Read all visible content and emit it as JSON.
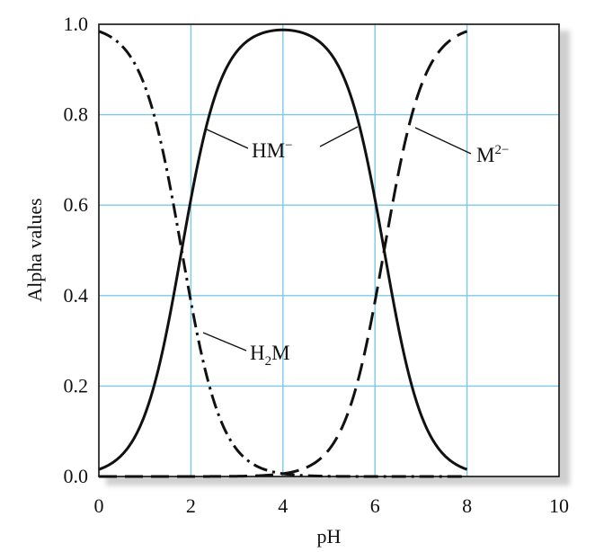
{
  "chart_data": {
    "type": "line",
    "xlabel": "pH",
    "ylabel": "Alpha values",
    "xlim": [
      0,
      10
    ],
    "ylim": [
      0,
      1.0
    ],
    "x_ticks": [
      "0",
      "2",
      "4",
      "6",
      "8",
      "10"
    ],
    "y_ticks": [
      "0.0",
      "0.2",
      "0.4",
      "0.6",
      "0.8",
      "1.0"
    ],
    "grid": true,
    "colors": {
      "grid": "#7cc8e6",
      "line": "#111111",
      "shadow": "#c8c8c8"
    },
    "pKa1": 1.8,
    "pKa2": 6.2,
    "x_range": [
      0,
      8
    ],
    "series": [
      {
        "name": "H2M",
        "label": {
          "base": "H",
          "sub": "2",
          "tail": "M"
        },
        "style": "dash-dot",
        "x": [
          0,
          0.5,
          1.0,
          1.5,
          1.8,
          2.0,
          2.5,
          3.0,
          3.5,
          4.0,
          4.5,
          5.0,
          5.5,
          6.0,
          6.5,
          7.0,
          7.5,
          8.0
        ],
        "values": [
          0.984,
          0.952,
          0.863,
          0.666,
          0.5,
          0.387,
          0.166,
          0.059,
          0.019,
          0.006,
          0.002,
          0.001,
          0.0,
          0.0,
          0.0,
          0.0,
          0.0,
          0.0
        ]
      },
      {
        "name": "HM⁻",
        "label": {
          "base": "HM",
          "sup": "−"
        },
        "style": "solid",
        "x": [
          0,
          0.5,
          1.0,
          1.5,
          1.8,
          2.0,
          2.5,
          3.0,
          3.5,
          4.0,
          4.5,
          5.0,
          5.5,
          6.0,
          6.2,
          6.5,
          7.0,
          7.5,
          8.0
        ],
        "values": [
          0.016,
          0.048,
          0.137,
          0.334,
          0.5,
          0.612,
          0.833,
          0.94,
          0.975,
          0.988,
          0.978,
          0.94,
          0.833,
          0.613,
          0.5,
          0.334,
          0.137,
          0.048,
          0.016
        ]
      },
      {
        "name": "M²⁻",
        "label": {
          "base": "M",
          "sup": "2−"
        },
        "style": "dashed",
        "x": [
          0,
          0.5,
          1.0,
          1.5,
          2.0,
          2.5,
          3.0,
          3.5,
          4.0,
          4.5,
          5.0,
          5.5,
          6.0,
          6.2,
          6.5,
          7.0,
          7.5,
          8.0
        ],
        "values": [
          0.0,
          0.0,
          0.0,
          0.0,
          0.0,
          0.0,
          0.001,
          0.002,
          0.006,
          0.019,
          0.059,
          0.166,
          0.387,
          0.5,
          0.666,
          0.863,
          0.952,
          0.984
        ]
      }
    ]
  }
}
